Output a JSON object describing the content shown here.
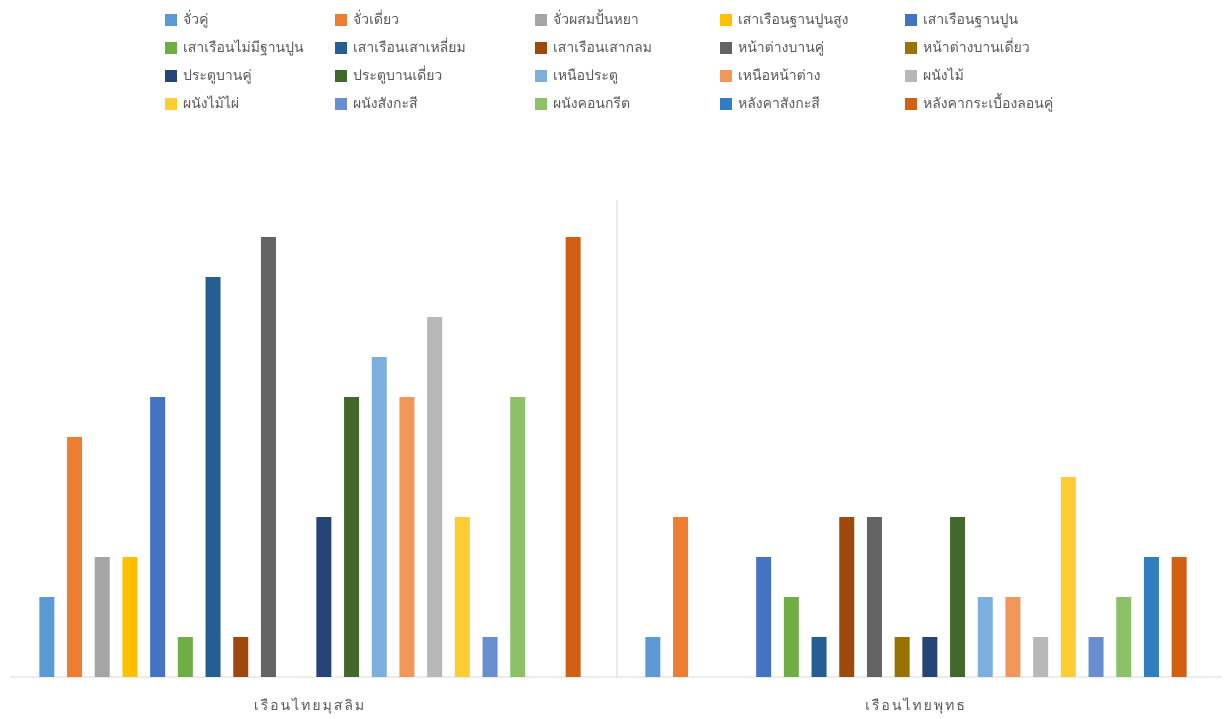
{
  "chart_data": {
    "type": "bar",
    "categories": [
      "เรือนไทยมุสลิม",
      "เรือนไทยพุทธ"
    ],
    "ylim": [
      0,
      12
    ],
    "legend": "top",
    "series": [
      {
        "name": "จั่วคู่",
        "color": "#5b9bd5",
        "values": [
          2,
          1
        ]
      },
      {
        "name": "จั่วเดี่ยว",
        "color": "#ed7d31",
        "values": [
          6,
          4
        ]
      },
      {
        "name": "จั่วผสมปั้นหยา",
        "color": "#a5a5a5",
        "values": [
          3,
          0
        ]
      },
      {
        "name": "เสาเรือนฐานปูนสูง",
        "color": "#ffc000",
        "values": [
          3,
          0
        ]
      },
      {
        "name": "เสาเรือนฐานปูน",
        "color": "#4472c4",
        "values": [
          7,
          3
        ]
      },
      {
        "name": "เสาเรือนไม่มีฐานปูน",
        "color": "#70ad47",
        "values": [
          1,
          2
        ]
      },
      {
        "name": "เสาเรือนเสาเหลี่ยม",
        "color": "#255e91",
        "values": [
          10,
          1
        ]
      },
      {
        "name": "เสาเรือนเสากลม",
        "color": "#9e480e",
        "values": [
          1,
          4
        ]
      },
      {
        "name": "หน้าต่างบานคู่",
        "color": "#636363",
        "values": [
          11,
          4
        ]
      },
      {
        "name": "หน้าต่างบานเดี่ยว",
        "color": "#997300",
        "values": [
          0,
          1
        ]
      },
      {
        "name": "ประตูบานคู่",
        "color": "#264478",
        "values": [
          4,
          1
        ]
      },
      {
        "name": "ประตูบานเดี่ยว",
        "color": "#43682b",
        "values": [
          7,
          4
        ]
      },
      {
        "name": "เหนือประตู",
        "color": "#7cafdd",
        "values": [
          8,
          2
        ]
      },
      {
        "name": "เหนือหน้าต่าง",
        "color": "#f1975a",
        "values": [
          7,
          2
        ]
      },
      {
        "name": "ผนังไม้",
        "color": "#b7b7b7",
        "values": [
          9,
          1
        ]
      },
      {
        "name": "ผนังไม้ไผ่",
        "color": "#ffcd33",
        "values": [
          4,
          5
        ]
      },
      {
        "name": "ผนังสังกะสี",
        "color": "#698ed0",
        "values": [
          1,
          1
        ]
      },
      {
        "name": "ผนังคอนกรีต",
        "color": "#8cc168",
        "values": [
          7,
          2
        ]
      },
      {
        "name": "หลังคาสังกะสี",
        "color": "#327dc2",
        "values": [
          0,
          3
        ]
      },
      {
        "name": "หลังคากระเบื้องลอนคู่",
        "color": "#d26012",
        "values": [
          11,
          3
        ]
      }
    ]
  }
}
